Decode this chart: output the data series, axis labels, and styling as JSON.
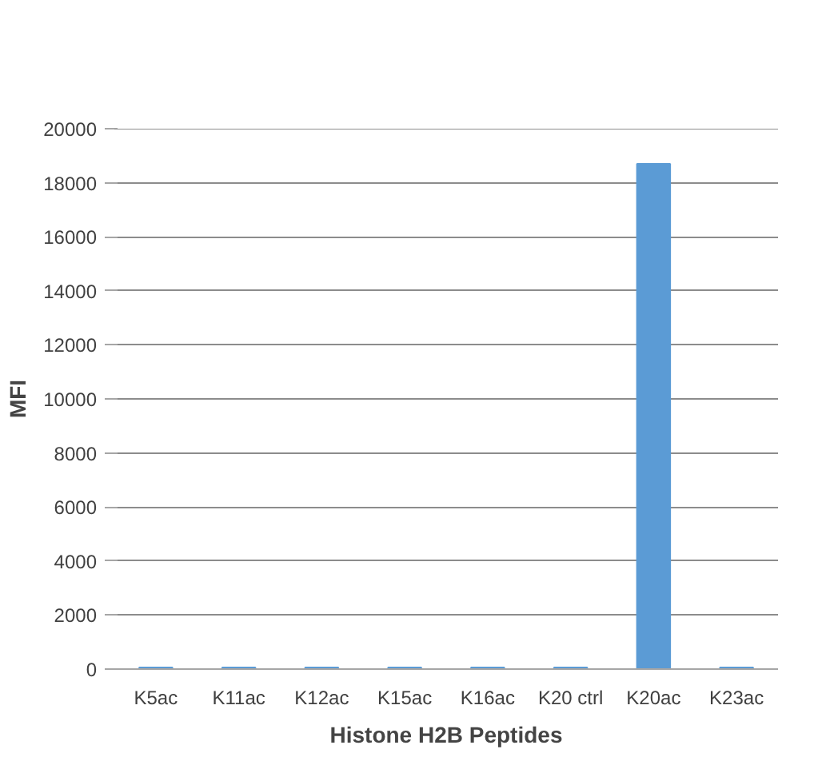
{
  "chart_data": {
    "type": "bar",
    "xlabel": "Histone H2B Peptides",
    "ylabel": "MFI",
    "categories": [
      "K5ac",
      "K11ac",
      "K12ac",
      "K15ac",
      "K16ac",
      "K20 ctrl",
      "K20ac",
      "K23ac"
    ],
    "values": [
      60,
      60,
      60,
      60,
      60,
      60,
      18700,
      60
    ],
    "color": "#5b9bd5",
    "ylim": [
      0,
      20000
    ],
    "yticks": [
      0,
      2000,
      4000,
      6000,
      8000,
      10000,
      12000,
      14000,
      16000,
      18000,
      20000
    ],
    "grid": "y"
  }
}
